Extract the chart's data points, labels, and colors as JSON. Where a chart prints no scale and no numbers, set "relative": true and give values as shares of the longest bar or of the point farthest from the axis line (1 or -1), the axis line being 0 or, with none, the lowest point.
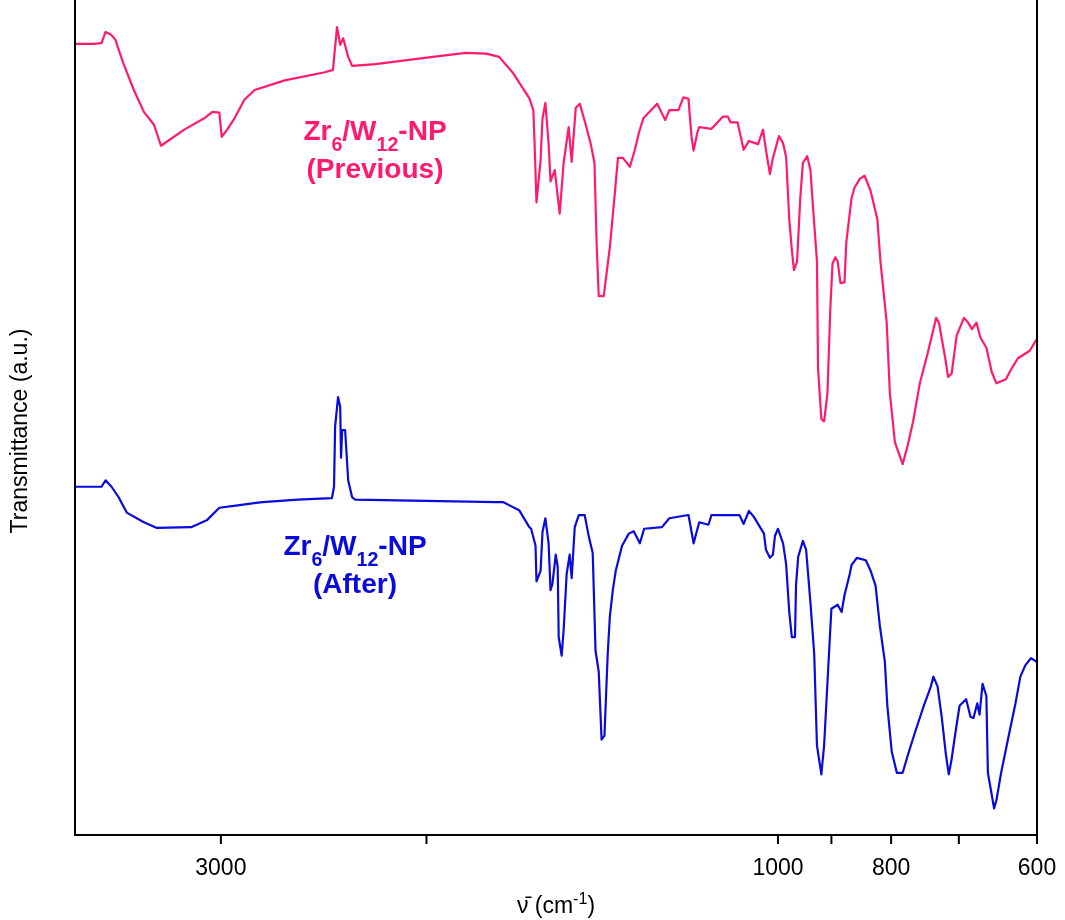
{
  "chart_data": {
    "type": "line",
    "xlabel": "ν̄ (cm$^{-1}$)",
    "ylabel": "Transmittance (a.u.)",
    "relative": true,
    "log": "x",
    "xlim": [
      4000,
      600
    ],
    "xticks": [
      3000,
      {
        "value": 2000,
        "label": null
      },
      1000,
      {
        "value": 900,
        "label": null
      },
      800,
      {
        "value": 700,
        "label": null
      },
      600
    ],
    "grid": false,
    "marker": "none",
    "line_style": "solid",
    "series": [
      {
        "name": "Zr$_{6}$/W$_{12}$-NP\n(Previous)",
        "color": "#ff1a6e",
        "x": [
          4000,
          3857,
          3796,
          3766,
          3722,
          3693,
          3670,
          3634,
          3562,
          3492,
          3423,
          3376,
          3225,
          3100,
          3051,
          3009,
          2995,
          2963,
          2926,
          2864,
          2807,
          2645,
          2444,
          2405,
          2386,
          2371,
          2357,
          2334,
          2316,
          2212,
          1975,
          1851,
          1778,
          1733,
          1686,
          1633,
          1620,
          1616,
          1610,
          1597,
          1591,
          1582,
          1572,
          1566,
          1553,
          1538,
          1526,
          1511,
          1502,
          1490,
          1478,
          1461,
          1447,
          1436,
          1430,
          1424,
          1410,
          1393,
          1380,
          1371,
          1358,
          1339,
          1326,
          1315,
          1304,
          1269,
          1249,
          1239,
          1217,
          1205,
          1193,
          1186,
          1181,
          1172,
          1168,
          1140,
          1115,
          1104,
          1098,
          1083,
          1070,
          1059,
          1040,
          1030,
          1024,
          1016,
          1010,
          998,
          990,
          984,
          978,
          973,
          969,
          963,
          957,
          952,
          944,
          938,
          933,
          926,
          924,
          918,
          913,
          907,
          902,
          898,
          893,
          889,
          884,
          877,
          874,
          865,
          860,
          851,
          843,
          833,
          822,
          817,
          807,
          802,
          794,
          782,
          774,
          766,
          756,
          745,
          732,
          728,
          719,
          715,
          710,
          703,
          693,
          688,
          682,
          676,
          671,
          663,
          656,
          650,
          638,
          631,
          623,
          609,
          600
        ],
        "values": [
          0.979,
          0.979,
          0.98,
          0.994,
          0.99,
          0.984,
          0.972,
          0.954,
          0.922,
          0.895,
          0.879,
          0.853,
          0.873,
          0.887,
          0.895,
          0.894,
          0.864,
          0.873,
          0.885,
          0.91,
          0.922,
          0.934,
          0.944,
          0.947,
          1.0,
          0.978,
          0.986,
          0.963,
          0.952,
          0.954,
          0.963,
          0.968,
          0.967,
          0.963,
          0.943,
          0.912,
          0.897,
          0.856,
          0.783,
          0.835,
          0.887,
          0.906,
          0.856,
          0.809,
          0.823,
          0.769,
          0.832,
          0.876,
          0.833,
          0.9,
          0.905,
          0.879,
          0.856,
          0.832,
          0.733,
          0.667,
          0.667,
          0.728,
          0.792,
          0.838,
          0.838,
          0.827,
          0.848,
          0.87,
          0.887,
          0.905,
          0.885,
          0.897,
          0.897,
          0.913,
          0.911,
          0.865,
          0.847,
          0.87,
          0.876,
          0.874,
          0.889,
          0.889,
          0.882,
          0.882,
          0.848,
          0.859,
          0.855,
          0.873,
          0.848,
          0.818,
          0.838,
          0.865,
          0.856,
          0.839,
          0.762,
          0.724,
          0.699,
          0.71,
          0.788,
          0.832,
          0.84,
          0.823,
          0.775,
          0.71,
          0.577,
          0.515,
          0.512,
          0.547,
          0.65,
          0.707,
          0.715,
          0.71,
          0.683,
          0.684,
          0.733,
          0.788,
          0.801,
          0.812,
          0.816,
          0.797,
          0.762,
          0.71,
          0.634,
          0.547,
          0.486,
          0.459,
          0.483,
          0.512,
          0.559,
          0.594,
          0.64,
          0.634,
          0.59,
          0.567,
          0.571,
          0.618,
          0.64,
          0.635,
          0.626,
          0.634,
          0.616,
          0.603,
          0.573,
          0.559,
          0.564,
          0.577,
          0.59,
          0.599,
          0.614
        ]
      },
      {
        "name": "Zr$_{6}$/W$_{12}$-NP\n(After)",
        "color": "#0a0adc",
        "x": [
          4000,
          3796,
          3766,
          3722,
          3670,
          3612,
          3492,
          3403,
          3181,
          3082,
          3009,
          2902,
          2763,
          2578,
          2410,
          2400,
          2395,
          2381,
          2371,
          2367,
          2362,
          2348,
          2334,
          2316,
          2302,
          1743,
          1720,
          1666,
          1633,
          1627,
          1613,
          1610,
          1597,
          1591,
          1582,
          1572,
          1566,
          1560,
          1550,
          1544,
          1541,
          1532,
          1526,
          1517,
          1508,
          1502,
          1493,
          1481,
          1464,
          1452,
          1441,
          1433,
          1424,
          1416,
          1408,
          1399,
          1393,
          1385,
          1377,
          1360,
          1342,
          1329,
          1313,
          1302,
          1257,
          1239,
          1193,
          1181,
          1168,
          1147,
          1140,
          1079,
          1070,
          1059,
          1049,
          1040,
          1028,
          1024,
          1016,
          1010,
          1006,
          1000,
          990,
          984,
          978,
          973,
          967,
          965,
          961,
          952,
          946,
          938,
          931,
          926,
          918,
          913,
          906,
          900,
          889,
          882,
          877,
          868,
          865,
          856,
          841,
          833,
          825,
          818,
          810,
          806,
          799,
          791,
          782,
          774,
          764,
          750,
          740,
          736,
          730,
          724,
          718,
          714,
          710,
          705,
          699,
          690,
          684,
          680,
          675,
          672,
          668,
          663,
          661,
          653,
          650,
          644,
          635,
          626,
          620,
          614,
          607,
          600
        ],
        "values": [
          0.431,
          0.431,
          0.439,
          0.431,
          0.418,
          0.399,
          0.387,
          0.38,
          0.381,
          0.39,
          0.405,
          0.408,
          0.412,
          0.415,
          0.417,
          0.431,
          0.505,
          0.542,
          0.53,
          0.467,
          0.501,
          0.501,
          0.439,
          0.418,
          0.415,
          0.412,
          0.412,
          0.402,
          0.381,
          0.379,
          0.358,
          0.314,
          0.327,
          0.375,
          0.392,
          0.361,
          0.303,
          0.311,
          0.347,
          0.332,
          0.245,
          0.222,
          0.254,
          0.323,
          0.347,
          0.318,
          0.381,
          0.396,
          0.396,
          0.369,
          0.349,
          0.228,
          0.202,
          0.118,
          0.123,
          0.224,
          0.271,
          0.303,
          0.327,
          0.358,
          0.373,
          0.376,
          0.361,
          0.379,
          0.381,
          0.392,
          0.396,
          0.361,
          0.387,
          0.384,
          0.396,
          0.396,
          0.385,
          0.401,
          0.394,
          0.385,
          0.373,
          0.353,
          0.343,
          0.347,
          0.37,
          0.379,
          0.361,
          0.335,
          0.276,
          0.245,
          0.245,
          0.309,
          0.344,
          0.364,
          0.353,
          0.288,
          0.224,
          0.111,
          0.075,
          0.111,
          0.202,
          0.28,
          0.285,
          0.276,
          0.297,
          0.323,
          0.334,
          0.343,
          0.34,
          0.327,
          0.309,
          0.259,
          0.215,
          0.16,
          0.103,
          0.077,
          0.077,
          0.099,
          0.125,
          0.16,
          0.183,
          0.196,
          0.184,
          0.146,
          0.099,
          0.075,
          0.094,
          0.125,
          0.16,
          0.168,
          0.146,
          0.145,
          0.163,
          0.149,
          0.187,
          0.172,
          0.077,
          0.033,
          0.043,
          0.077,
          0.12,
          0.163,
          0.196,
          0.21,
          0.219,
          0.214
        ]
      }
    ]
  }
}
